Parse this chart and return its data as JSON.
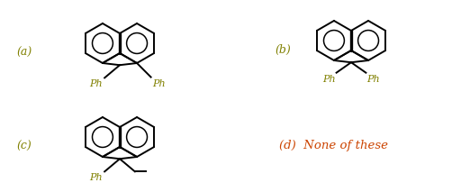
{
  "background_color": "#ffffff",
  "label_color_ab": "#808000",
  "label_color_d": "#cc4400",
  "label_color_ph": "#808000",
  "fig_width": 5.12,
  "fig_height": 2.13,
  "dpi": 100,
  "line_width": 1.4,
  "structures": {
    "a_label": "(a)",
    "b_label": "(b)",
    "c_label": "(c)",
    "d_label": "(d)  None of these"
  }
}
